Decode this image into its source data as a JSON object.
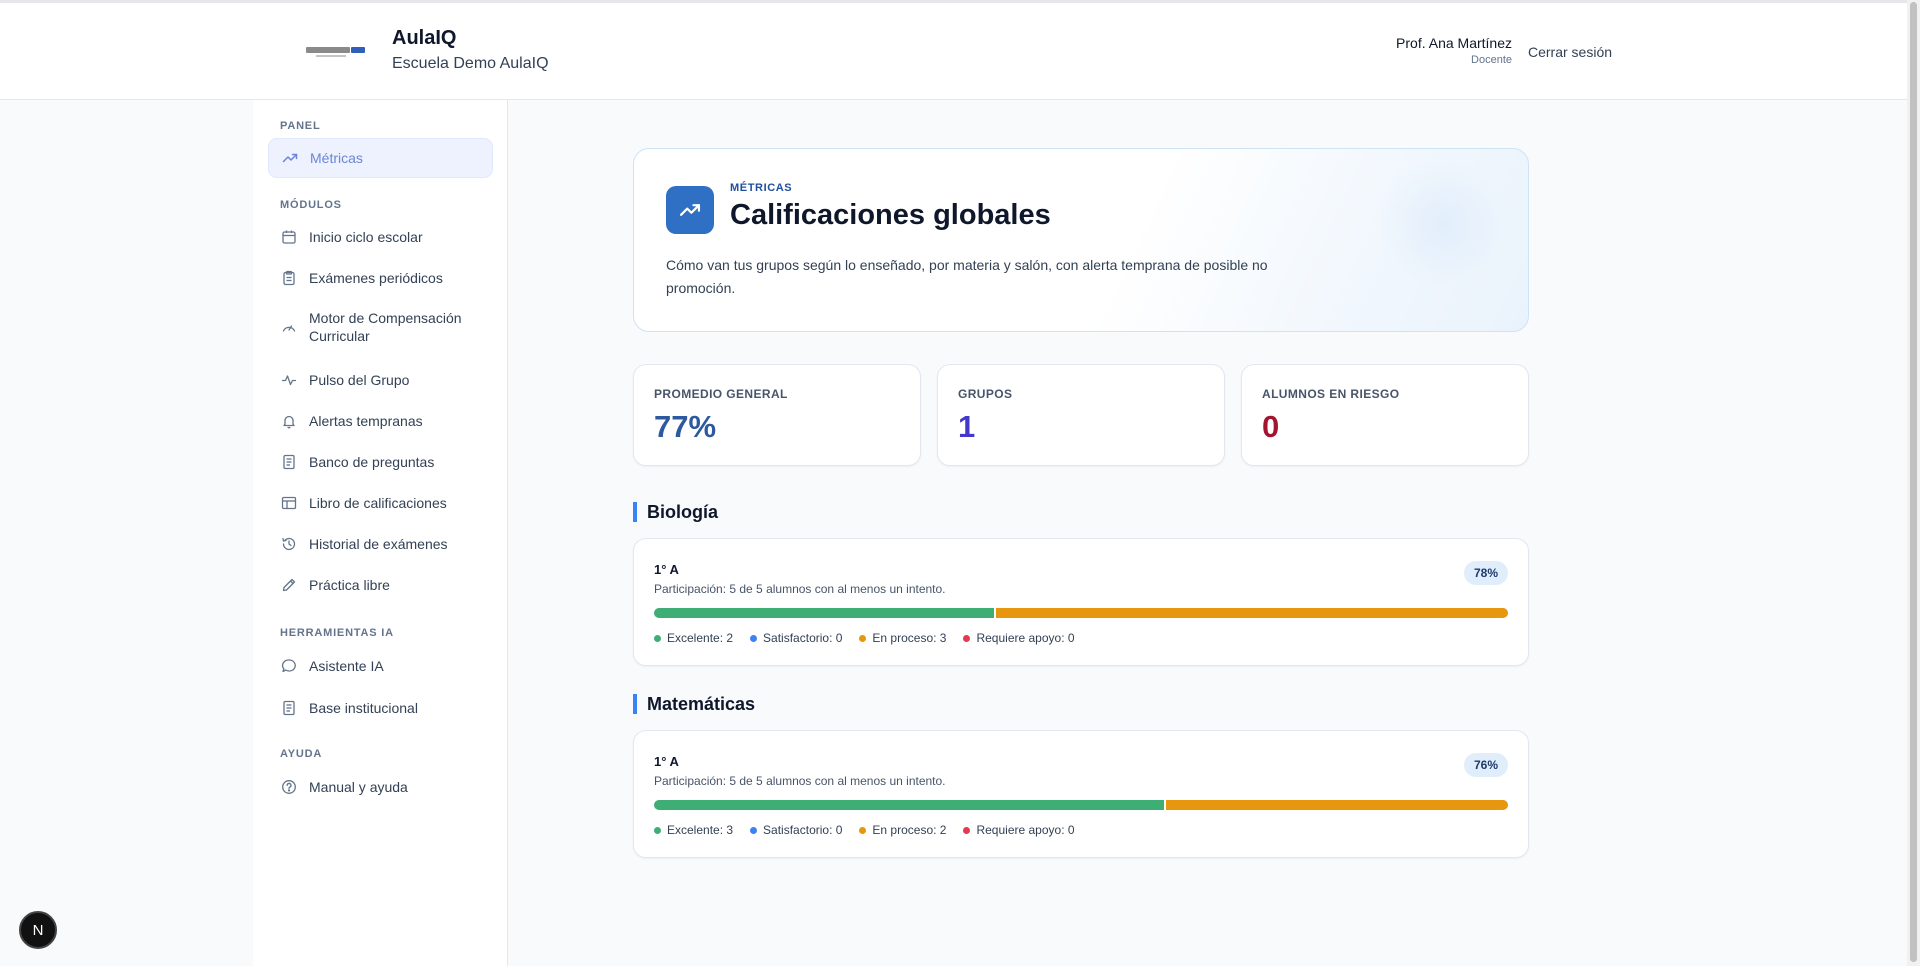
{
  "header": {
    "app_name": "AulaIQ",
    "school_name": "Escuela Demo AulaIQ",
    "user_name": "Prof. Ana Martínez",
    "user_role": "Docente",
    "logout_label": "Cerrar sesión",
    "logo_icon": "brand-logo"
  },
  "sidebar": {
    "sections": [
      {
        "label": "PANEL"
      },
      {
        "label": "MÓDULOS"
      },
      {
        "label": "HERRAMIENTAS IA"
      },
      {
        "label": "AYUDA"
      }
    ],
    "items": [
      {
        "label": "Métricas",
        "icon": "trending-up-icon",
        "active": true
      },
      {
        "label": "Inicio ciclo escolar",
        "icon": "calendar-icon"
      },
      {
        "label": "Exámenes periódicos",
        "icon": "clipboard-icon"
      },
      {
        "label": "Motor de Compensación Curricular",
        "icon": "gauge-icon"
      },
      {
        "label": "Pulso del Grupo",
        "icon": "activity-icon"
      },
      {
        "label": "Alertas tempranas",
        "icon": "bell-icon"
      },
      {
        "label": "Banco de preguntas",
        "icon": "document-icon"
      },
      {
        "label": "Libro de calificaciones",
        "icon": "table-icon"
      },
      {
        "label": "Historial de exámenes",
        "icon": "history-icon"
      },
      {
        "label": "Práctica libre",
        "icon": "pencil-icon"
      },
      {
        "label": "Asistente IA",
        "icon": "chat-icon"
      },
      {
        "label": "Base institucional",
        "icon": "document-icon"
      },
      {
        "label": "Manual y ayuda",
        "icon": "help-circle-icon"
      }
    ]
  },
  "hero": {
    "kicker": "MÉTRICAS",
    "title": "Calificaciones globales",
    "description": "Cómo van tus grupos según lo enseñado, por materia y salón, con alerta temprana de posible no promoción.",
    "icon": "trending-up-icon"
  },
  "stats": [
    {
      "label": "PROMEDIO GENERAL",
      "value": "77%",
      "color": "#2d5a9e"
    },
    {
      "label": "GRUPOS",
      "value": "1",
      "color": "#4338ca"
    },
    {
      "label": "ALUMNOS EN RIESGO",
      "value": "0",
      "color": "#a3152f"
    }
  ],
  "legend_colors": {
    "excelente": "#3fae74",
    "satisfactorio": "#3b82f6",
    "en_proceso": "#e6960f",
    "requiere_apoyo": "#e23a4f"
  },
  "subjects": [
    {
      "name": "Biología",
      "group": "1° A",
      "participation": "Participación: 5 de 5 alumnos con al menos un intento.",
      "badge": "78%",
      "dist": {
        "excelente": 2,
        "satisfactorio": 0,
        "en_proceso": 3,
        "requiere_apoyo": 0
      },
      "legend": [
        "Excelente: 2",
        "Satisfactorio: 0",
        "En proceso: 3",
        "Requiere apoyo: 0"
      ]
    },
    {
      "name": "Matemáticas",
      "group": "1° A",
      "participation": "Participación: 5 de 5 alumnos con al menos un intento.",
      "badge": "76%",
      "dist": {
        "excelente": 3,
        "satisfactorio": 0,
        "en_proceso": 2,
        "requiere_apoyo": 0
      },
      "legend": [
        "Excelente: 3",
        "Satisfactorio: 0",
        "En proceso: 2",
        "Requiere apoyo: 0"
      ]
    }
  ],
  "dev_badge": {
    "label": "N"
  }
}
